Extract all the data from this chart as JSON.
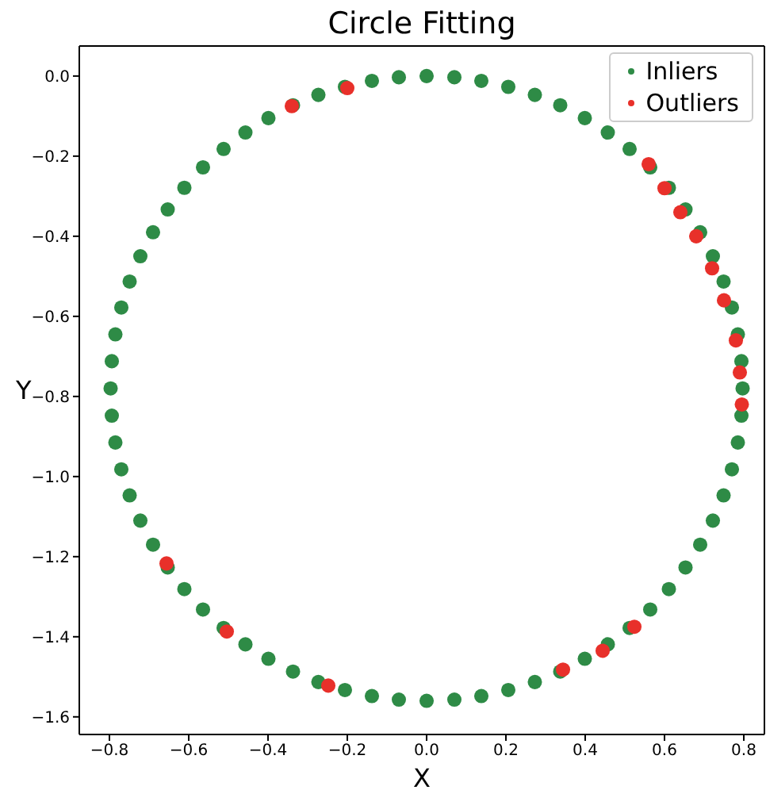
{
  "chart_data": {
    "type": "scatter",
    "title": "Circle Fitting",
    "xlabel": "X",
    "ylabel": "Y",
    "xlim": [
      -0.876,
      0.852
    ],
    "ylim": [
      -1.644,
      0.075
    ],
    "xticks": [
      {
        "value": -0.8,
        "label": "−0.8"
      },
      {
        "value": -0.6,
        "label": "−0.6"
      },
      {
        "value": -0.4,
        "label": "−0.4"
      },
      {
        "value": -0.2,
        "label": "−0.2"
      },
      {
        "value": 0,
        "label": "0.0"
      },
      {
        "value": 0.2,
        "label": "0.2"
      },
      {
        "value": 0.4,
        "label": "0.4"
      },
      {
        "value": 0.6,
        "label": "0.6"
      },
      {
        "value": 0.8,
        "label": "0.8"
      }
    ],
    "yticks": [
      {
        "value": 0,
        "label": "0.0"
      },
      {
        "value": -0.2,
        "label": "−0.2"
      },
      {
        "value": -0.4,
        "label": "−0.4"
      },
      {
        "value": -0.6,
        "label": "−0.6"
      },
      {
        "value": -0.8,
        "label": "−0.8"
      },
      {
        "value": -1.0,
        "label": "−1.0"
      },
      {
        "value": -1.2,
        "label": "−1.2"
      },
      {
        "value": -1.4,
        "label": "−1.4"
      },
      {
        "value": -1.6,
        "label": "−1.6"
      }
    ],
    "legend": "top right",
    "marker": "circle",
    "series": [
      {
        "name": "Inliers",
        "color": "#2e8b46",
        "x": [
          0.797,
          0.794,
          0.785,
          0.77,
          0.749,
          0.722,
          0.69,
          0.653,
          0.611,
          0.564,
          0.512,
          0.457,
          0.399,
          0.337,
          0.273,
          0.206,
          0.138,
          0.07,
          0,
          -0.07,
          -0.138,
          -0.206,
          -0.273,
          -0.337,
          -0.399,
          -0.457,
          -0.512,
          -0.564,
          -0.611,
          -0.653,
          -0.69,
          -0.722,
          -0.749,
          -0.77,
          -0.785,
          -0.794,
          -0.797,
          -0.794,
          -0.785,
          -0.77,
          -0.749,
          -0.722,
          -0.69,
          -0.653,
          -0.611,
          -0.564,
          -0.512,
          -0.457,
          -0.399,
          -0.337,
          -0.273,
          -0.206,
          -0.138,
          -0.07,
          0,
          0.07,
          0.138,
          0.206,
          0.273,
          0.337,
          0.399,
          0.457,
          0.512,
          0.564,
          0.611,
          0.653,
          0.69,
          0.722,
          0.749,
          0.77,
          0.785,
          0.794
        ],
        "values": [
          -0.78,
          -0.712,
          -0.645,
          -0.578,
          -0.513,
          -0.45,
          -0.39,
          -0.333,
          -0.279,
          -0.228,
          -0.182,
          -0.141,
          -0.105,
          -0.073,
          -0.047,
          -0.027,
          -0.012,
          -0.003,
          0,
          -0.003,
          -0.012,
          -0.027,
          -0.047,
          -0.073,
          -0.105,
          -0.141,
          -0.182,
          -0.228,
          -0.279,
          -0.333,
          -0.39,
          -0.45,
          -0.513,
          -0.578,
          -0.645,
          -0.712,
          -0.78,
          -0.848,
          -0.915,
          -0.982,
          -1.047,
          -1.11,
          -1.17,
          -1.227,
          -1.281,
          -1.332,
          -1.378,
          -1.419,
          -1.455,
          -1.487,
          -1.513,
          -1.533,
          -1.548,
          -1.557,
          -1.56,
          -1.557,
          -1.548,
          -1.533,
          -1.513,
          -1.487,
          -1.455,
          -1.419,
          -1.378,
          -1.332,
          -1.281,
          -1.227,
          -1.17,
          -1.11,
          -1.047,
          -0.982,
          -0.915,
          -0.848
        ]
      },
      {
        "name": "Outliers",
        "color": "#e8302a",
        "x": [
          0.56,
          0.6,
          0.64,
          0.68,
          0.72,
          0.75,
          0.78,
          0.79,
          0.795,
          -0.34,
          -0.2,
          -0.656,
          -0.504,
          -0.248,
          0.344,
          0.444,
          0.524
        ],
        "values": [
          -0.22,
          -0.28,
          -0.34,
          -0.4,
          -0.48,
          -0.56,
          -0.66,
          -0.74,
          -0.82,
          -0.075,
          -0.03,
          -1.217,
          -1.387,
          -1.522,
          -1.482,
          -1.435,
          -1.375
        ]
      }
    ]
  }
}
